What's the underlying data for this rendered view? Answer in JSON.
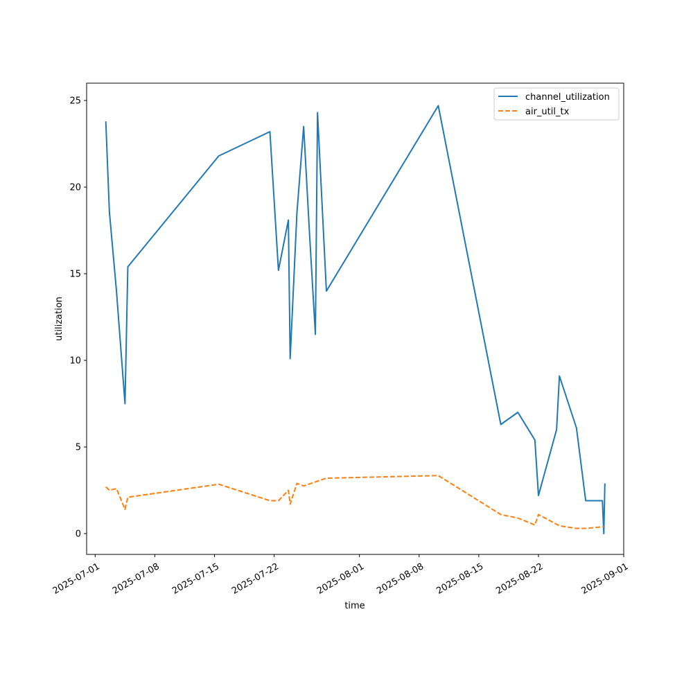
{
  "chart_data": {
    "type": "line",
    "title": "",
    "xlabel": "time",
    "ylabel": "utilization",
    "xlim": [
      "2025-06-30T00:00",
      "2025-09-01T00:00"
    ],
    "ylim": [
      -1.2,
      26.0
    ],
    "y_ticks": [
      0,
      5,
      10,
      15,
      20,
      25
    ],
    "x_ticks": [
      "2025-07-01",
      "2025-07-08",
      "2025-07-15",
      "2025-07-22",
      "2025-08-01",
      "2025-08-08",
      "2025-08-15",
      "2025-08-22",
      "2025-09-01"
    ],
    "grid": false,
    "legend_position": "top-right",
    "series": [
      {
        "name": "channel_utilization",
        "color": "#1f77b4",
        "style": "solid",
        "points": [
          [
            "2025-07-02T06:00",
            23.8
          ],
          [
            "2025-07-02T16:00",
            18.6
          ],
          [
            "2025-07-03T12:00",
            14.0
          ],
          [
            "2025-07-04T12:00",
            7.5
          ],
          [
            "2025-07-04T20:00",
            15.4
          ],
          [
            "2025-07-15T12:00",
            21.8
          ],
          [
            "2025-07-21T12:00",
            23.2
          ],
          [
            "2025-07-22T12:00",
            15.2
          ],
          [
            "2025-07-23T16:00",
            18.1
          ],
          [
            "2025-07-23T21:00",
            10.1
          ],
          [
            "2025-07-24T16:00",
            18.5
          ],
          [
            "2025-07-25T11:00",
            23.5
          ],
          [
            "2025-07-26T03:00",
            17.5
          ],
          [
            "2025-07-26T20:00",
            11.5
          ],
          [
            "2025-07-27T02:00",
            24.3
          ],
          [
            "2025-07-28T03:00",
            14.0
          ],
          [
            "2025-08-10T06:00",
            24.7
          ],
          [
            "2025-08-17T14:00",
            6.3
          ],
          [
            "2025-08-19T14:00",
            7.0
          ],
          [
            "2025-08-21T14:00",
            5.4
          ],
          [
            "2025-08-22T00:00",
            2.2
          ],
          [
            "2025-08-24T03:00",
            6.0
          ],
          [
            "2025-08-24T11:00",
            9.1
          ],
          [
            "2025-08-26T11:00",
            6.1
          ],
          [
            "2025-08-27T13:00",
            1.9
          ],
          [
            "2025-08-29T12:00",
            1.9
          ],
          [
            "2025-08-29T16:00",
            0.0
          ],
          [
            "2025-08-29T19:00",
            2.9
          ]
        ]
      },
      {
        "name": "air_util_tx",
        "color": "#ff7f0e",
        "style": "dashed",
        "points": [
          [
            "2025-07-02T06:00",
            2.7
          ],
          [
            "2025-07-02T16:00",
            2.5
          ],
          [
            "2025-07-03T12:00",
            2.6
          ],
          [
            "2025-07-04T12:00",
            1.4
          ],
          [
            "2025-07-04T20:00",
            2.1
          ],
          [
            "2025-07-15T12:00",
            2.85
          ],
          [
            "2025-07-21T12:00",
            1.9
          ],
          [
            "2025-07-22T12:00",
            1.9
          ],
          [
            "2025-07-23T16:00",
            2.5
          ],
          [
            "2025-07-23T21:00",
            1.7
          ],
          [
            "2025-07-24T16:00",
            2.9
          ],
          [
            "2025-07-25T11:00",
            2.75
          ],
          [
            "2025-07-28T03:00",
            3.2
          ],
          [
            "2025-08-10T06:00",
            3.35
          ],
          [
            "2025-08-17T14:00",
            1.1
          ],
          [
            "2025-08-19T14:00",
            0.9
          ],
          [
            "2025-08-21T14:00",
            0.5
          ],
          [
            "2025-08-22T00:00",
            1.1
          ],
          [
            "2025-08-24T11:00",
            0.45
          ],
          [
            "2025-08-26T11:00",
            0.3
          ],
          [
            "2025-08-27T13:00",
            0.3
          ],
          [
            "2025-08-29T16:00",
            0.4
          ]
        ]
      }
    ]
  }
}
